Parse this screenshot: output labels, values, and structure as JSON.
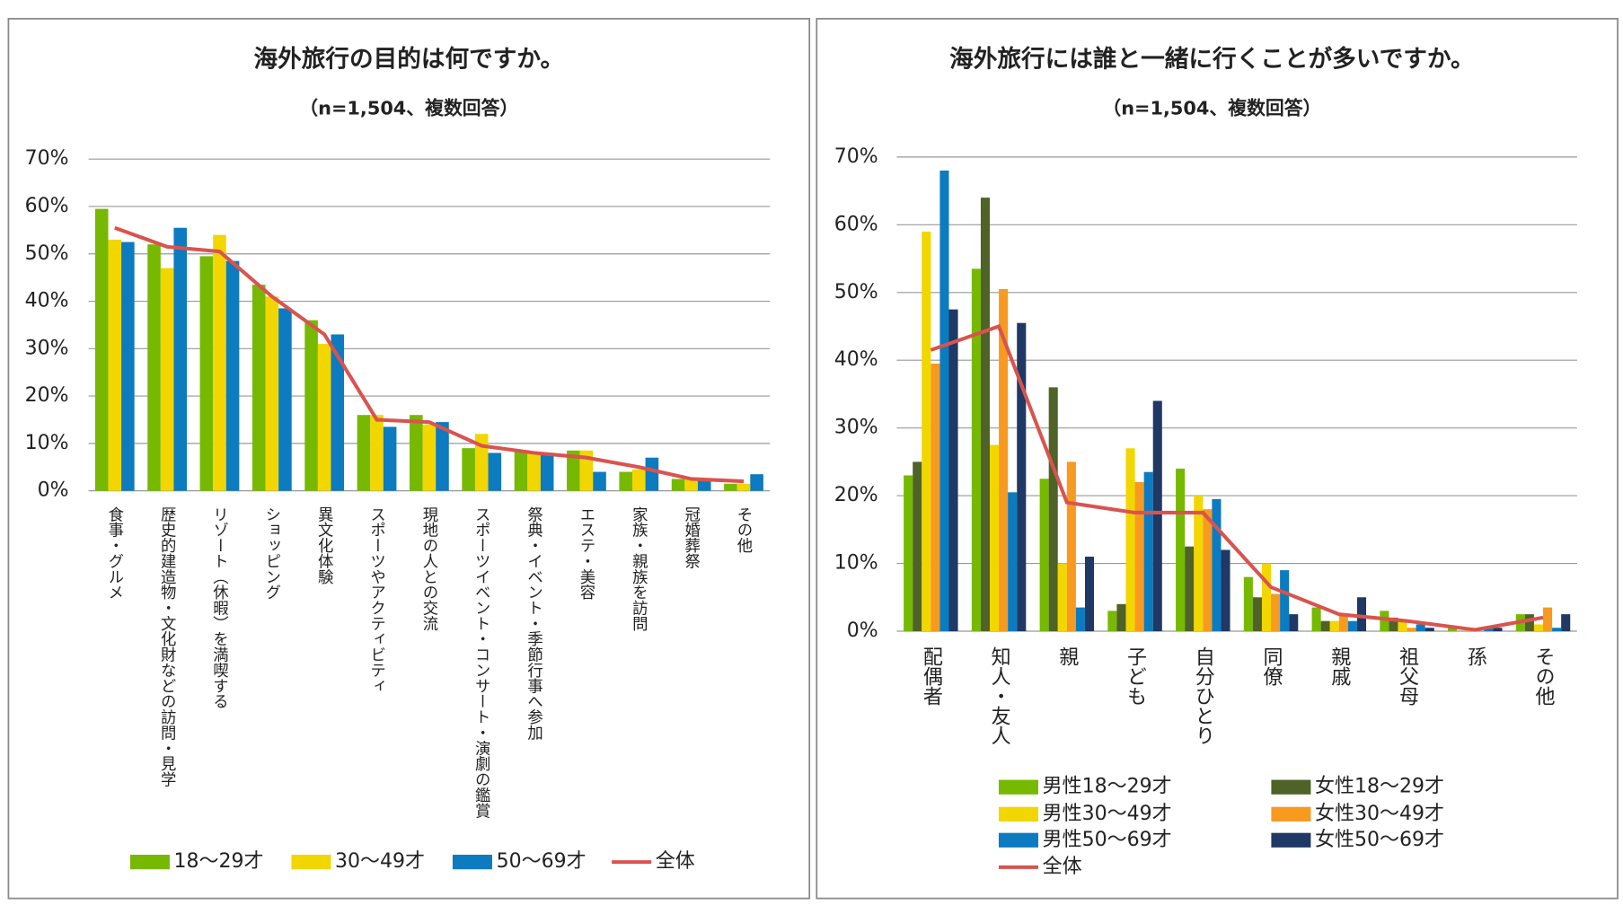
{
  "chart_data": [
    {
      "type": "bar",
      "title": "海外旅行の目的は何ですか。",
      "subtitle": "（n=1,504、複数回答）",
      "categories": [
        "食事・グルメ",
        "歴史的建造物・文化財などの訪問・見学",
        "リゾート（休暇）を満喫する",
        "ショッピング",
        "異文化体験",
        "スポーツやアクティビティ",
        "現地の人との交流",
        "スポーツイベント・コンサート・演劇の鑑賞",
        "祭典・イベント・季節行事へ参加",
        "エステ・美容",
        "家族・親族を訪問",
        "冠婚葬祭",
        "その他"
      ],
      "series": [
        {
          "name": "18〜29才",
          "color": "#76b900",
          "values": [
            59.5,
            52,
            49.5,
            43.5,
            36,
            16,
            16,
            9,
            8.5,
            8.5,
            4,
            2.5,
            1.5
          ]
        },
        {
          "name": "30〜49才",
          "color": "#f2d600",
          "values": [
            53,
            47,
            54,
            41,
            31,
            16,
            14,
            12,
            8,
            8.5,
            4.5,
            2.5,
            1.5
          ]
        },
        {
          "name": "50〜69才",
          "color": "#0c7bbf",
          "values": [
            52.5,
            55.5,
            48.5,
            38.5,
            33,
            13.5,
            14.5,
            8,
            8,
            4,
            7,
            2.5,
            3.5
          ]
        },
        {
          "name": "全体",
          "color": "#d9534f",
          "type": "line",
          "values": [
            55.5,
            51.5,
            50.5,
            41,
            33,
            15,
            14.5,
            9.5,
            8,
            7,
            5,
            2.5,
            2
          ]
        }
      ],
      "ylim": [
        0,
        70
      ],
      "yticks": [
        {
          "value": 0,
          "label": "0%"
        },
        {
          "value": 10,
          "label": "10%"
        },
        {
          "value": 20,
          "label": "20%"
        },
        {
          "value": 30,
          "label": "30%"
        },
        {
          "value": 40,
          "label": "40%"
        },
        {
          "value": 50,
          "label": "50%"
        },
        {
          "value": 60,
          "label": "60%"
        },
        {
          "value": 70,
          "label": "70%"
        }
      ],
      "grid": true,
      "legend": "bottom"
    },
    {
      "type": "bar",
      "title": "海外旅行には誰と一緒に行くことが多いですか。",
      "subtitle": "（n=1,504、複数回答）",
      "categories": [
        "配偶者",
        "知人・友人",
        "親",
        "子ども",
        "自分ひとり",
        "同僚",
        "親戚",
        "祖父母",
        "孫",
        "その他"
      ],
      "series": [
        {
          "name": "男性18〜29才",
          "color": "#76b900",
          "values": [
            23,
            53.5,
            22.5,
            3,
            24,
            8,
            3.5,
            3,
            0.5,
            2.5
          ]
        },
        {
          "name": "女性18〜29才",
          "color": "#4f6228",
          "values": [
            25,
            64,
            36,
            4,
            12.5,
            5,
            1.5,
            2,
            0,
            2.5
          ]
        },
        {
          "name": "男性30〜49才",
          "color": "#f2d600",
          "values": [
            59,
            27.5,
            10,
            27,
            20,
            10,
            1.5,
            1.5,
            0.5,
            1
          ]
        },
        {
          "name": "女性30〜49才",
          "color": "#f79a1f",
          "values": [
            39.5,
            50.5,
            25,
            22,
            18,
            5.5,
            2.5,
            0.5,
            0,
            3.5
          ]
        },
        {
          "name": "男性50〜69才",
          "color": "#0c7bbf",
          "values": [
            68,
            20.5,
            3.5,
            23.5,
            19.5,
            9,
            1.5,
            1,
            0.5,
            0.5
          ]
        },
        {
          "name": "女性50〜69才",
          "color": "#1f3864",
          "values": [
            47.5,
            45.5,
            11,
            34,
            12,
            2.5,
            5,
            0.5,
            0.5,
            2.5
          ]
        },
        {
          "name": "全体",
          "color": "#d9534f",
          "type": "line",
          "values": [
            41.5,
            45,
            19,
            17.5,
            17.5,
            6.5,
            2.5,
            1.5,
            0.2,
            2
          ]
        }
      ],
      "ylim": [
        0,
        70
      ],
      "yticks": [
        {
          "value": 0,
          "label": "0%"
        },
        {
          "value": 10,
          "label": "10%"
        },
        {
          "value": 20,
          "label": "20%"
        },
        {
          "value": 30,
          "label": "30%"
        },
        {
          "value": 40,
          "label": "40%"
        },
        {
          "value": 50,
          "label": "50%"
        },
        {
          "value": 60,
          "label": "60%"
        },
        {
          "value": 70,
          "label": "70%"
        }
      ],
      "grid": true,
      "legend": "bottom"
    }
  ]
}
